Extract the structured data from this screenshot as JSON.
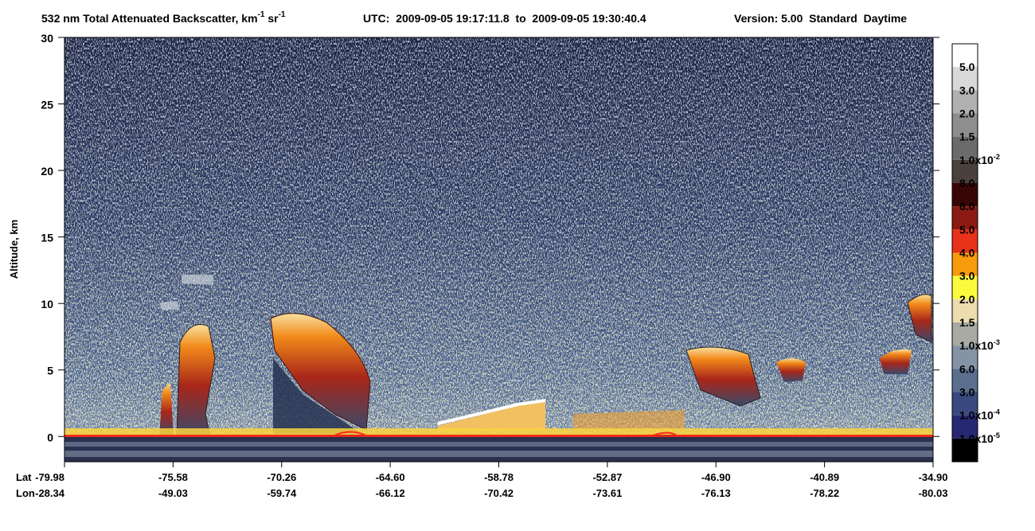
{
  "chart_data": {
    "type": "curtain",
    "title_parts": [
      {
        "text": "532 nm Total Attenuated Backscatter, km",
        "sup": "-1"
      },
      {
        "text": " sr",
        "sup": "-1"
      }
    ],
    "time_range": "UTC:  2009-09-05 19:17:11.8  to  2009-09-05 19:30:40.4",
    "version": "Version: 5.00  Standard  Daytime",
    "ylabel": "Altitude, km",
    "ylim": [
      -1.9,
      30
    ],
    "yticks": [
      0,
      5,
      10,
      15,
      20,
      25,
      30
    ],
    "x_rows": [
      {
        "name": "Lat",
        "labels": [
          "-79.98",
          "-75.58",
          "-70.26",
          "-64.60",
          "-58.78",
          "-52.87",
          "-46.90",
          "-40.89",
          "-34.90"
        ]
      },
      {
        "name": "Lon",
        "labels": [
          "-28.34",
          "-49.03",
          "-59.74",
          "-66.12",
          "-70.42",
          "-73.61",
          "-76.13",
          "-78.22",
          "-80.03"
        ]
      }
    ],
    "colorbar": {
      "colors": [
        "#ffffff",
        "#d9d9d9",
        "#b0b0b0",
        "#8e8e8e",
        "#6b6b6b",
        "#4a403c",
        "#380606",
        "#8a1a12",
        "#e8321a",
        "#f79a0c",
        "#fbfb3e",
        "#ecdcae",
        "#a9aaa2",
        "#8494a4",
        "#5a6e8e",
        "#3a4a7e",
        "#262872",
        "#000000"
      ],
      "labels": [
        {
          "text": "5.0"
        },
        {
          "text": "3.0"
        },
        {
          "text": "2.0"
        },
        {
          "text": "1.5"
        },
        {
          "text": "1.0x10",
          "sup": "-2"
        },
        {
          "text": "8.0"
        },
        {
          "text": "6.0"
        },
        {
          "text": "5.0"
        },
        {
          "text": "4.0"
        },
        {
          "text": "3.0"
        },
        {
          "text": "2.0"
        },
        {
          "text": "1.5"
        },
        {
          "text": "1.0x10",
          "sup": "-3"
        },
        {
          "text": "6.0"
        },
        {
          "text": "3.0"
        },
        {
          "text": "1.0x10",
          "sup": "-4"
        },
        {
          "text": "1.0x10",
          "sup": "-5"
        }
      ]
    }
  }
}
